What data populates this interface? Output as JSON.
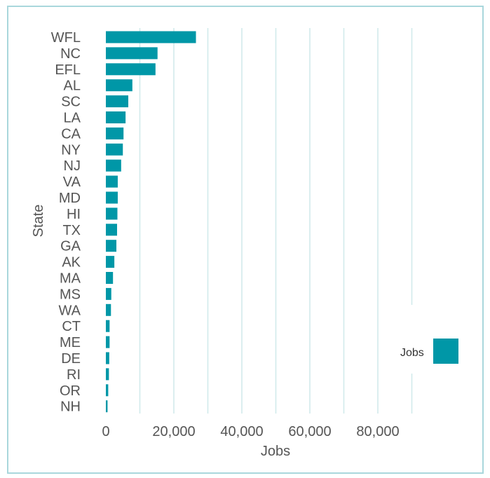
{
  "chart_data": {
    "type": "bar",
    "orientation": "horizontal",
    "categories": [
      "WFL",
      "NC",
      "EFL",
      "AL",
      "SC",
      "LA",
      "CA",
      "NY",
      "NJ",
      "VA",
      "MD",
      "HI",
      "TX",
      "GA",
      "AK",
      "MA",
      "MS",
      "WA",
      "CT",
      "ME",
      "DE",
      "RI",
      "OR",
      "NH"
    ],
    "values": [
      26500,
      15200,
      14600,
      7800,
      6600,
      5800,
      5200,
      5000,
      4500,
      3500,
      3500,
      3400,
      3300,
      3100,
      2500,
      2100,
      1600,
      1500,
      1100,
      1100,
      1000,
      900,
      700,
      500
    ],
    "series": [
      {
        "name": "Jobs",
        "values": [
          26500,
          15200,
          14600,
          7800,
          6600,
          5800,
          5200,
          5000,
          4500,
          3500,
          3500,
          3400,
          3300,
          3100,
          2500,
          2100,
          1600,
          1500,
          1100,
          1100,
          1000,
          900,
          700,
          500
        ]
      }
    ],
    "xlabel": "Jobs",
    "ylabel": "State",
    "xlim": [
      0,
      100000
    ],
    "xticks": [
      0,
      20000,
      40000,
      60000,
      80000
    ],
    "xtick_labels": [
      "0",
      "20,000",
      "40,000",
      "60,000",
      "80,000"
    ],
    "gridlines": "vertical",
    "legend": {
      "position": "bottom-right",
      "entries": [
        "Jobs"
      ]
    },
    "colors": {
      "bar": "#0097a7",
      "grid": "#cfe9ea",
      "frame": "#a9d7dc",
      "text": "#555555"
    }
  }
}
